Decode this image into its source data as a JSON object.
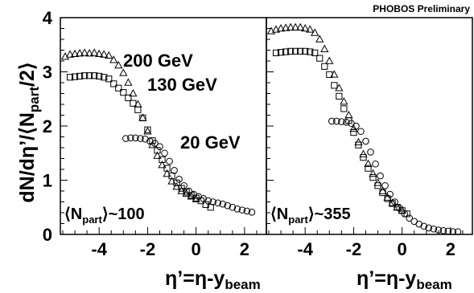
{
  "header": {
    "preliminary": "PHOBOS Preliminary"
  },
  "axes": {
    "ylabel": {
      "main": "dN/dη’/⟨N",
      "sub": "part",
      "tail": "/2⟩"
    },
    "xlabel": {
      "main": "η’=η-y",
      "sub": "beam"
    },
    "y_ticks": [
      "0",
      "1",
      "2",
      "3",
      "4"
    ],
    "x_ticks": [
      "-4",
      "-2",
      "0",
      "2"
    ]
  },
  "annotations": {
    "e200": "200 GeV",
    "e130": "130 GeV",
    "e20": "20 GeV",
    "left_npart": {
      "open": "⟨N",
      "sub": "part",
      "close": "⟩",
      "value": "~100"
    },
    "right_npart": {
      "open": "⟨N",
      "sub": "part",
      "close": "⟩",
      "value": "~355"
    }
  },
  "chart_data": [
    {
      "type": "scatter",
      "xlim": [
        -5.6,
        2.9
      ],
      "ylim": [
        0,
        4
      ],
      "grid": false,
      "centrality_label": "⟨Npart⟩~100",
      "series": [
        {
          "name": "200 GeV",
          "marker": "triangle",
          "x": [
            -5.4,
            -5.2,
            -5.0,
            -4.8,
            -4.6,
            -4.4,
            -4.2,
            -4.0,
            -3.8,
            -3.6,
            -3.4,
            -3.2,
            -3.0,
            -2.8,
            -2.6,
            -2.4,
            -2.2,
            -2.0,
            -1.8,
            -1.6,
            -1.4,
            -1.2,
            -1.0,
            -0.8,
            -0.6,
            -0.4,
            -0.2,
            0.0
          ],
          "y": [
            3.28,
            3.32,
            3.33,
            3.34,
            3.35,
            3.34,
            3.35,
            3.33,
            3.32,
            3.3,
            3.22,
            3.12,
            2.98,
            2.8,
            2.6,
            2.4,
            2.15,
            1.9,
            1.65,
            1.45,
            1.28,
            1.12,
            0.98,
            0.88,
            0.8,
            0.75,
            0.7,
            0.65
          ]
        },
        {
          "name": "130 GeV",
          "marker": "square",
          "x": [
            -5.2,
            -5.0,
            -4.8,
            -4.6,
            -4.4,
            -4.2,
            -4.0,
            -3.8,
            -3.6,
            -3.4,
            -3.2,
            -3.0,
            -2.8,
            -2.6,
            -2.4,
            -2.2,
            -2.0,
            -1.8,
            -1.6,
            -1.4,
            -1.2,
            -1.0,
            -0.8,
            -0.6,
            -0.4,
            -0.2,
            0.0,
            0.2,
            0.4,
            0.6
          ],
          "y": [
            2.9,
            2.91,
            2.92,
            2.93,
            2.93,
            2.93,
            2.92,
            2.9,
            2.87,
            2.78,
            2.7,
            2.62,
            2.52,
            2.42,
            2.3,
            2.15,
            1.93,
            1.73,
            1.55,
            1.38,
            1.22,
            1.08,
            0.95,
            0.85,
            0.78,
            0.72,
            0.67,
            0.62,
            0.55,
            0.5
          ]
        },
        {
          "name": "20 GeV",
          "marker": "circle",
          "x": [
            -2.9,
            -2.7,
            -2.5,
            -2.3,
            -2.1,
            -1.9,
            -1.7,
            -1.5,
            -1.3,
            -1.1,
            -0.9,
            -0.7,
            -0.5,
            -0.3,
            -0.1,
            0.1,
            0.3,
            0.5,
            0.7,
            0.9,
            1.1,
            1.3,
            1.5,
            1.7,
            1.9,
            2.1,
            2.3
          ],
          "y": [
            1.77,
            1.78,
            1.78,
            1.77,
            1.76,
            1.72,
            1.68,
            1.62,
            1.5,
            1.35,
            1.18,
            1.02,
            0.9,
            0.8,
            0.74,
            0.7,
            0.66,
            0.62,
            0.6,
            0.58,
            0.56,
            0.53,
            0.5,
            0.47,
            0.45,
            0.43,
            0.41
          ]
        }
      ]
    },
    {
      "type": "scatter",
      "xlim": [
        -5.6,
        2.9
      ],
      "ylim": [
        0,
        4
      ],
      "grid": false,
      "centrality_label": "⟨Npart⟩~355",
      "series": [
        {
          "name": "200 GeV",
          "marker": "triangle",
          "x": [
            -5.4,
            -5.2,
            -5.0,
            -4.8,
            -4.6,
            -4.4,
            -4.2,
            -4.0,
            -3.8,
            -3.6,
            -3.4,
            -3.2,
            -3.0,
            -2.8,
            -2.6,
            -2.4,
            -2.2,
            -2.0,
            -1.8,
            -1.6,
            -1.4,
            -1.2,
            -1.0,
            -0.8,
            -0.6,
            -0.4,
            -0.2,
            0.0
          ],
          "y": [
            3.75,
            3.78,
            3.8,
            3.81,
            3.82,
            3.82,
            3.82,
            3.8,
            3.78,
            3.72,
            3.6,
            3.42,
            3.2,
            2.95,
            2.7,
            2.45,
            2.2,
            1.95,
            1.7,
            1.48,
            1.3,
            1.12,
            0.95,
            0.8,
            0.68,
            0.58,
            0.5,
            0.44
          ]
        },
        {
          "name": "130 GeV",
          "marker": "square",
          "x": [
            -5.2,
            -5.0,
            -4.8,
            -4.6,
            -4.4,
            -4.2,
            -4.0,
            -3.8,
            -3.6,
            -3.4,
            -3.2,
            -3.0,
            -2.8,
            -2.6,
            -2.4,
            -2.2,
            -2.0,
            -1.8,
            -1.6,
            -1.4,
            -1.2,
            -1.0,
            -0.8,
            -0.6,
            -0.4,
            -0.2,
            0.0,
            0.2
          ],
          "y": [
            3.35,
            3.36,
            3.37,
            3.38,
            3.38,
            3.38,
            3.38,
            3.37,
            3.35,
            3.25,
            3.1,
            2.95,
            2.75,
            2.55,
            2.32,
            2.1,
            1.88,
            1.65,
            1.42,
            1.22,
            1.05,
            0.9,
            0.77,
            0.66,
            0.57,
            0.5,
            0.44,
            0.38
          ]
        },
        {
          "name": "20 GeV",
          "marker": "circle",
          "x": [
            -2.9,
            -2.7,
            -2.5,
            -2.3,
            -2.1,
            -1.9,
            -1.7,
            -1.5,
            -1.3,
            -1.1,
            -0.9,
            -0.7,
            -0.5,
            -0.3,
            -0.1,
            0.1,
            0.3,
            0.5,
            0.7,
            0.9,
            1.1,
            1.3,
            1.5,
            1.7,
            1.9,
            2.1,
            2.3
          ],
          "y": [
            2.09,
            2.09,
            2.08,
            2.07,
            2.05,
            2.0,
            1.9,
            1.72,
            1.52,
            1.3,
            1.08,
            0.9,
            0.74,
            0.6,
            0.48,
            0.38,
            0.3,
            0.24,
            0.19,
            0.15,
            0.12,
            0.1,
            0.08,
            0.07,
            0.06,
            0.05,
            0.05
          ]
        }
      ]
    }
  ]
}
